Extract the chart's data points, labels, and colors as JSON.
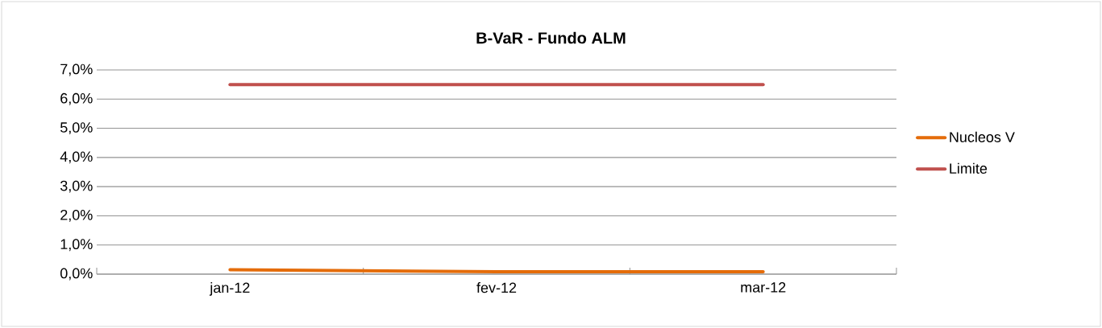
{
  "chart_data": {
    "type": "line",
    "title": "B-VaR - Fundo ALM",
    "categories": [
      "jan-12",
      "fev-12",
      "mar-12"
    ],
    "series": [
      {
        "name": "Nucleos V",
        "color": "#e46c0a",
        "values": [
          0.15,
          0.08,
          0.08
        ]
      },
      {
        "name": "Limite",
        "color": "#c0504d",
        "values": [
          6.5,
          6.5,
          6.5
        ]
      }
    ],
    "ylim": [
      0,
      7
    ],
    "yticks": [
      {
        "value": 0,
        "label": "0,0%"
      },
      {
        "value": 1,
        "label": "1,0%"
      },
      {
        "value": 2,
        "label": "2,0%"
      },
      {
        "value": 3,
        "label": "3,0%"
      },
      {
        "value": 4,
        "label": "4,0%"
      },
      {
        "value": 5,
        "label": "5,0%"
      },
      {
        "value": 6,
        "label": "6,0%"
      },
      {
        "value": 7,
        "label": "7,0%"
      }
    ],
    "grid": "y",
    "legend": "right",
    "marker": "none",
    "line_style": "solid"
  }
}
